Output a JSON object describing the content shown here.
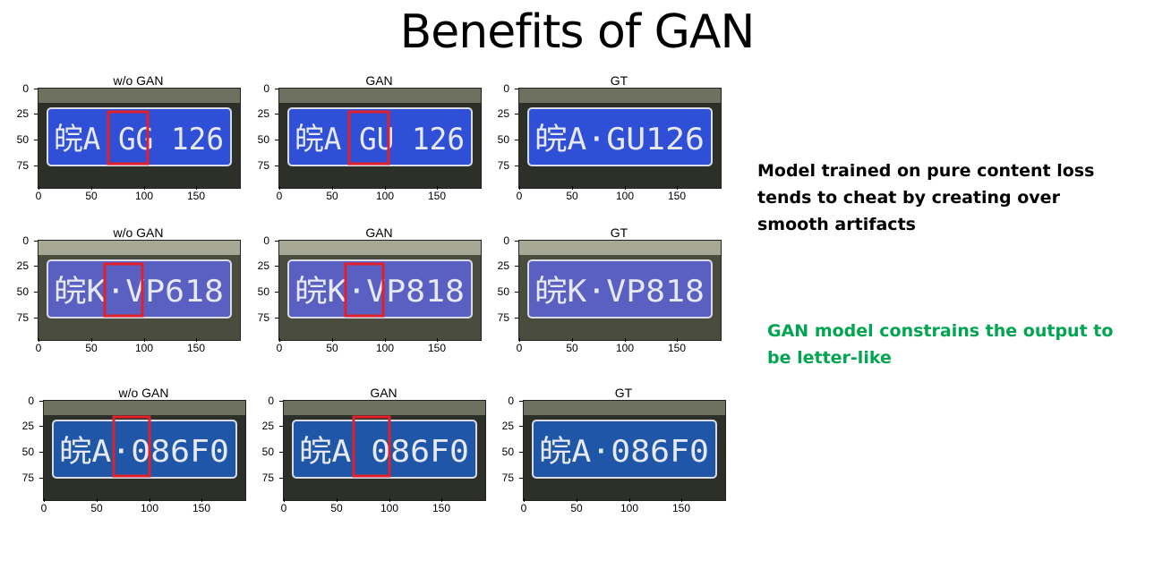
{
  "slide": {
    "title": "Benefits of GAN",
    "note_black": "Model trained on pure content loss tends to cheat by creating over smooth artifacts",
    "note_green": "GAN model constrains the output to be letter-like",
    "note_green_color": "#00a550",
    "highlight_color": "#e0202a"
  },
  "axes": {
    "y_ticks": [
      "0",
      "25",
      "50",
      "75"
    ],
    "x_ticks": [
      "0",
      "50",
      "100",
      "150"
    ]
  },
  "rows": [
    {
      "plate_color": "#2f4fd6",
      "panels": [
        {
          "title": "w/o GAN",
          "plate_text": "皖A GG 126",
          "highlight": true
        },
        {
          "title": "GAN",
          "plate_text": "皖A GU 126",
          "highlight": true
        },
        {
          "title": "GT",
          "plate_text": "皖A·GU126",
          "highlight": false
        }
      ]
    },
    {
      "plate_color": "#5a5fc2",
      "panels": [
        {
          "title": "w/o GAN",
          "plate_text": "皖K·VP618",
          "highlight": true
        },
        {
          "title": "GAN",
          "plate_text": "皖K·VP818",
          "highlight": true
        },
        {
          "title": "GT",
          "plate_text": "皖K·VP818",
          "highlight": false
        }
      ]
    },
    {
      "plate_color": "#1f56a8",
      "panels": [
        {
          "title": "w/o GAN",
          "plate_text": "皖A·086F0",
          "highlight": true
        },
        {
          "title": "GAN",
          "plate_text": "皖A 086F0",
          "highlight": true
        },
        {
          "title": "GT",
          "plate_text": "皖A·086F0",
          "highlight": false
        }
      ]
    }
  ]
}
